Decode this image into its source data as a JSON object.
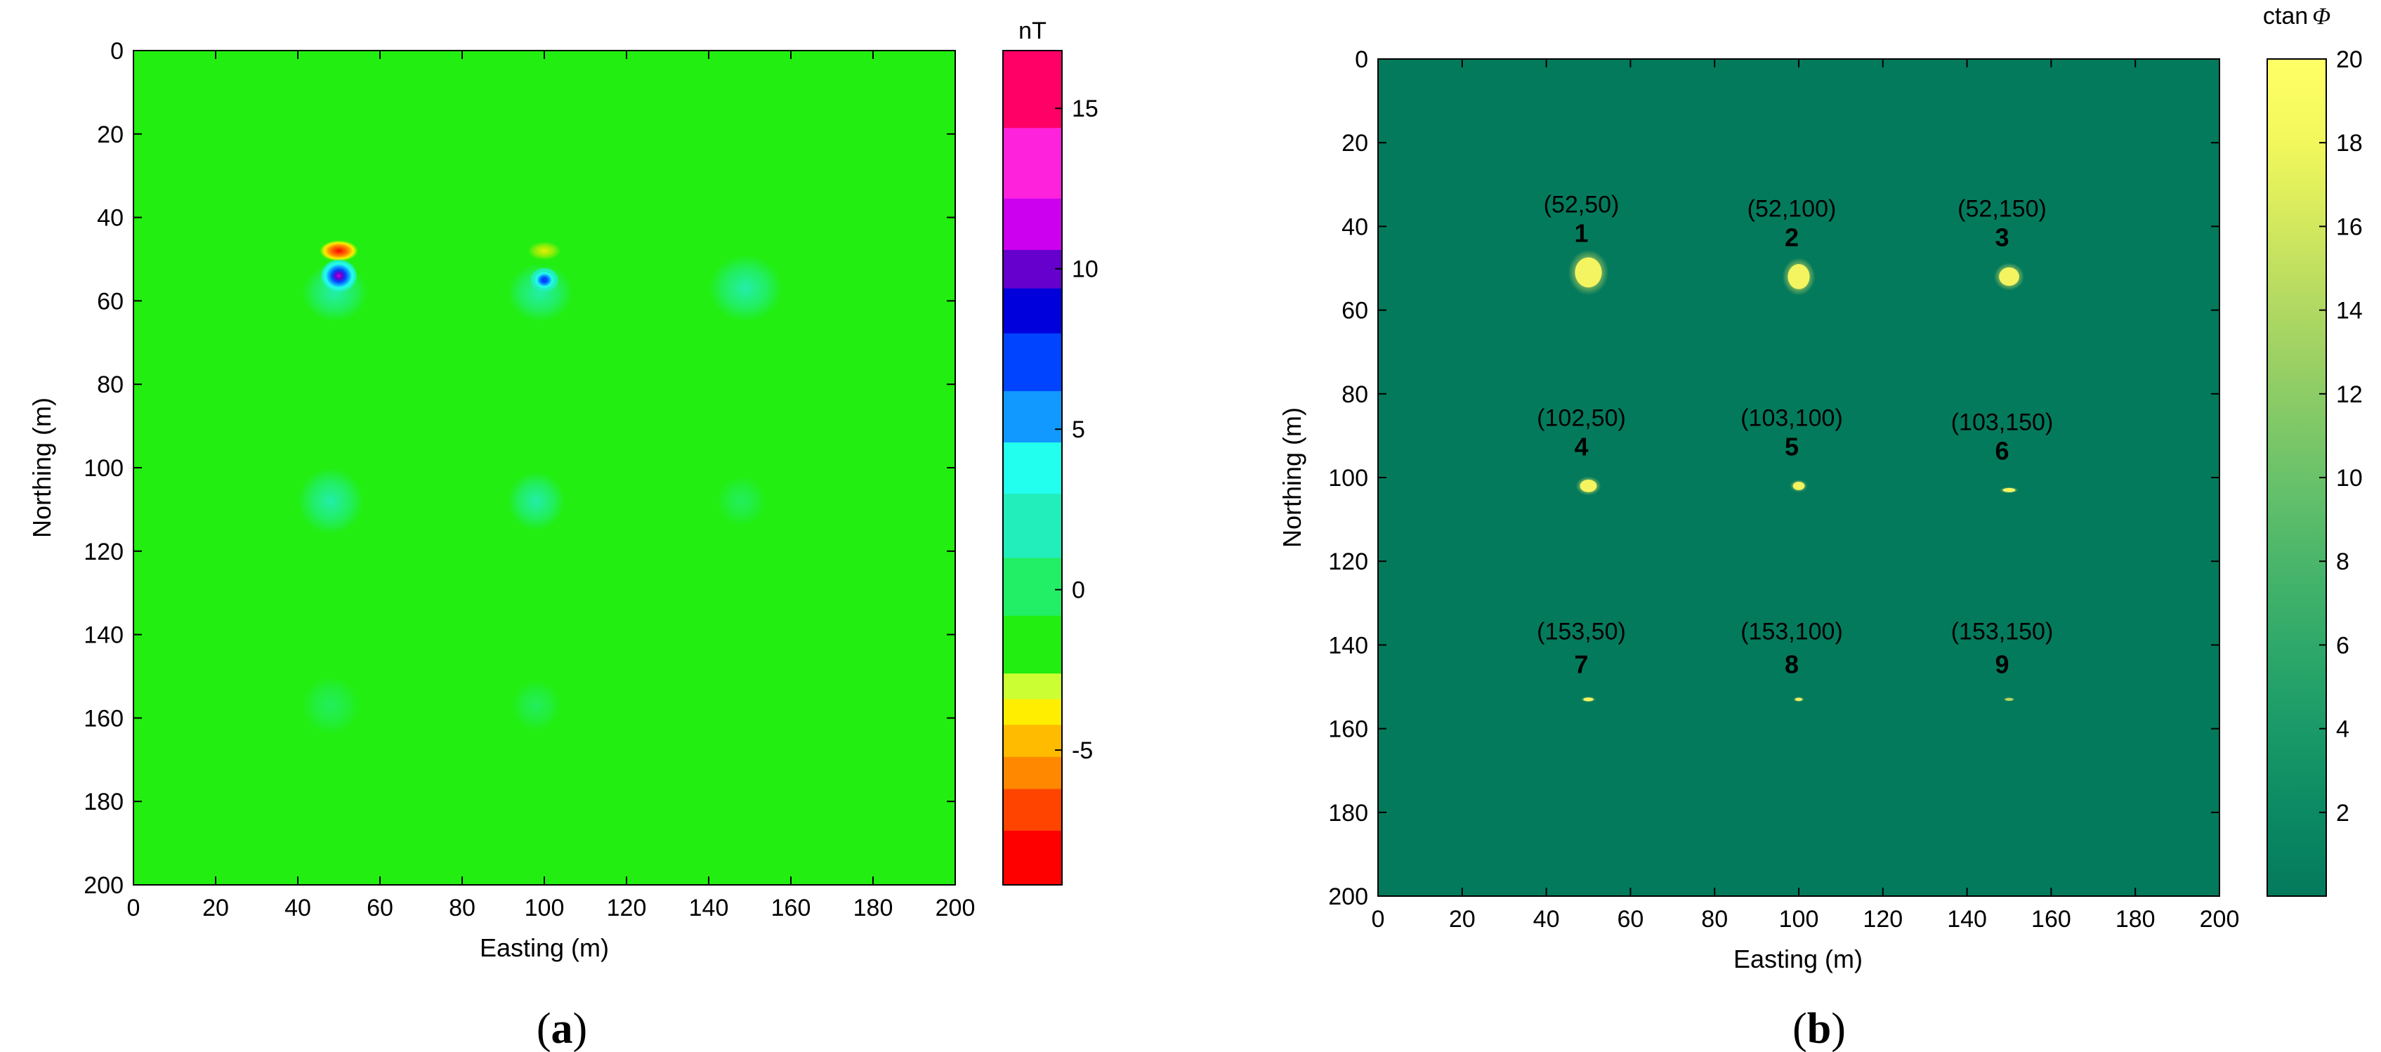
{
  "chart_data": [
    {
      "type": "heatmap",
      "panel_label": "(a)",
      "xlabel": "Easting (m)",
      "ylabel": "Northing (m)",
      "xlim": [
        0,
        200
      ],
      "ylim": [
        0,
        200
      ],
      "y_reversed": true,
      "xticks": [
        "0",
        "20",
        "40",
        "60",
        "80",
        "100",
        "120",
        "140",
        "160",
        "180",
        "200"
      ],
      "yticks": [
        "0",
        "20",
        "40",
        "60",
        "80",
        "100",
        "120",
        "140",
        "160",
        "180",
        "200"
      ],
      "background_color": "#22ee11",
      "colorbar": {
        "title": "nT",
        "range": [
          -9.2,
          16.8
        ],
        "ticks": [
          "15",
          "10",
          "5",
          "0",
          "-5"
        ],
        "tick_values": [
          15,
          10,
          5,
          0,
          -5
        ],
        "bands": [
          {
            "from": -9.2,
            "to": -7.5,
            "color": "#ff0000"
          },
          {
            "from": -7.5,
            "to": -6.2,
            "color": "#ff4400"
          },
          {
            "from": -6.2,
            "to": -5.2,
            "color": "#ff8800"
          },
          {
            "from": -5.2,
            "to": -4.2,
            "color": "#ffbb00"
          },
          {
            "from": -4.2,
            "to": -3.4,
            "color": "#ffee00"
          },
          {
            "from": -3.4,
            "to": -2.6,
            "color": "#ccff33"
          },
          {
            "from": -2.6,
            "to": -0.8,
            "color": "#22ee11"
          },
          {
            "from": -0.8,
            "to": 1.0,
            "color": "#22ee66"
          },
          {
            "from": 1.0,
            "to": 3.0,
            "color": "#22eebb"
          },
          {
            "from": 3.0,
            "to": 4.6,
            "color": "#22ffee"
          },
          {
            "from": 4.6,
            "to": 6.2,
            "color": "#1199ff"
          },
          {
            "from": 6.2,
            "to": 8.0,
            "color": "#0044ff"
          },
          {
            "from": 8.0,
            "to": 9.4,
            "color": "#0000dd"
          },
          {
            "from": 9.4,
            "to": 10.6,
            "color": "#6600cc"
          },
          {
            "from": 10.6,
            "to": 12.2,
            "color": "#cc00ee"
          },
          {
            "from": 12.2,
            "to": 14.4,
            "color": "#ff22dd"
          },
          {
            "from": 14.4,
            "to": 16.8,
            "color": "#ff0066"
          }
        ]
      },
      "anomalies": [
        {
          "x": 50,
          "y": 48,
          "value": -8.0,
          "rx": 6.5,
          "ry": 3.5
        },
        {
          "x": 50,
          "y": 54,
          "value": 12.0,
          "rx": 4.5,
          "ry": 4.0
        },
        {
          "x": 100,
          "y": 48,
          "value": -4.0,
          "rx": 4.0,
          "ry": 2.2
        },
        {
          "x": 100,
          "y": 55,
          "value": 7.5,
          "rx": 3.5,
          "ry": 3.0
        },
        {
          "x": 49,
          "y": 58,
          "value": 2.5,
          "rx": 8,
          "ry": 7
        },
        {
          "x": 99,
          "y": 58,
          "value": 2.0,
          "rx": 8,
          "ry": 7
        },
        {
          "x": 149,
          "y": 57,
          "value": 3.0,
          "rx": 9,
          "ry": 8
        },
        {
          "x": 48,
          "y": 108,
          "value": 1.6,
          "rx": 8,
          "ry": 8
        },
        {
          "x": 98,
          "y": 108,
          "value": 1.3,
          "rx": 7,
          "ry": 7
        },
        {
          "x": 148,
          "y": 108,
          "value": 1.0,
          "rx": 6,
          "ry": 6
        },
        {
          "x": 48,
          "y": 157,
          "value": 0.4,
          "rx": 7,
          "ry": 7
        },
        {
          "x": 98,
          "y": 157,
          "value": 0.3,
          "rx": 6,
          "ry": 6
        }
      ]
    },
    {
      "type": "heatmap",
      "panel_label": "(b)",
      "xlabel": "Easting (m)",
      "ylabel": "Northing (m)",
      "xlim": [
        0,
        200
      ],
      "ylim": [
        0,
        200
      ],
      "y_reversed": true,
      "xticks": [
        "0",
        "20",
        "40",
        "60",
        "80",
        "100",
        "120",
        "140",
        "160",
        "180",
        "200"
      ],
      "yticks": [
        "0",
        "20",
        "40",
        "60",
        "80",
        "100",
        "120",
        "140",
        "160",
        "180",
        "200"
      ],
      "background_color": "#047a5c",
      "colorbar": {
        "title": "ctan Φ",
        "title_text": "ctan",
        "title_symbol": "Φ",
        "range": [
          0,
          20
        ],
        "ticks": [
          "20",
          "18",
          "16",
          "14",
          "12",
          "10",
          "8",
          "6",
          "4",
          "2"
        ],
        "tick_values": [
          20,
          18,
          16,
          14,
          12,
          10,
          8,
          6,
          4,
          2
        ],
        "colors": [
          "#047a5c",
          "#0b8a63",
          "#1a9a68",
          "#2fa96a",
          "#4ab66a",
          "#6ac26a",
          "#8dcc66",
          "#b0d862",
          "#d2e85e",
          "#f2f85c",
          "#ffff66"
        ]
      },
      "sources": [
        {
          "id": "1",
          "label": "(52,50)",
          "x": 50,
          "y": 51,
          "intensity": 1.0,
          "rx": 3.2,
          "ry": 3.6
        },
        {
          "id": "2",
          "label": "(52,100)",
          "x": 100,
          "y": 52,
          "intensity": 1.0,
          "rx": 2.6,
          "ry": 3.0
        },
        {
          "id": "3",
          "label": "(52,150)",
          "x": 150,
          "y": 52,
          "intensity": 1.0,
          "rx": 2.4,
          "ry": 2.2
        },
        {
          "id": "4",
          "label": "(102,50)",
          "x": 50,
          "y": 102,
          "intensity": 0.95,
          "rx": 2.0,
          "ry": 1.5
        },
        {
          "id": "5",
          "label": "(103,100)",
          "x": 100,
          "y": 102,
          "intensity": 0.8,
          "rx": 1.4,
          "ry": 1.0
        },
        {
          "id": "6",
          "label": "(103,150)",
          "x": 150,
          "y": 103,
          "intensity": 0.75,
          "rx": 1.5,
          "ry": 0.5
        },
        {
          "id": "7",
          "label": "(153,50)",
          "x": 50,
          "y": 153,
          "intensity": 0.8,
          "rx": 1.2,
          "ry": 0.45
        },
        {
          "id": "8",
          "label": "(153,100)",
          "x": 100,
          "y": 153,
          "intensity": 0.6,
          "rx": 0.9,
          "ry": 0.4
        },
        {
          "id": "9",
          "label": "(153,150)",
          "x": 150,
          "y": 153,
          "intensity": 0.35,
          "rx": 1.0,
          "ry": 0.35
        }
      ]
    }
  ]
}
